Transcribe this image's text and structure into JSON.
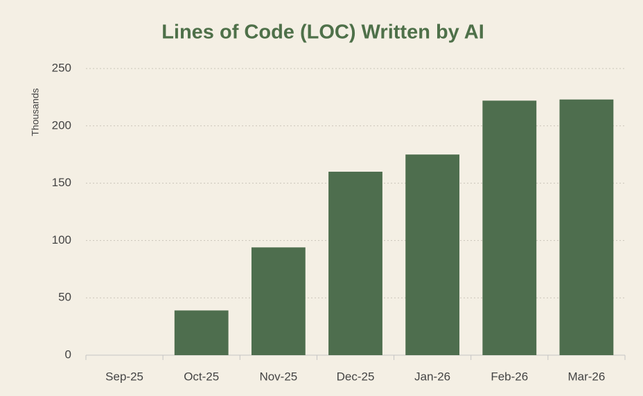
{
  "chart_data": {
    "type": "bar",
    "title": "Lines of Code (LOC) Written by AI",
    "y_label": "Thousands",
    "categories": [
      "Sep-25",
      "Oct-25",
      "Nov-25",
      "Dec-25",
      "Jan-26",
      "Feb-26",
      "Mar-26"
    ],
    "values": [
      0,
      39,
      94,
      160,
      175,
      222,
      223
    ],
    "color": "#4e6e4e",
    "ylim": [
      0,
      250
    ],
    "yticks": [
      0,
      50,
      100,
      150,
      200,
      250
    ],
    "grid": true
  }
}
